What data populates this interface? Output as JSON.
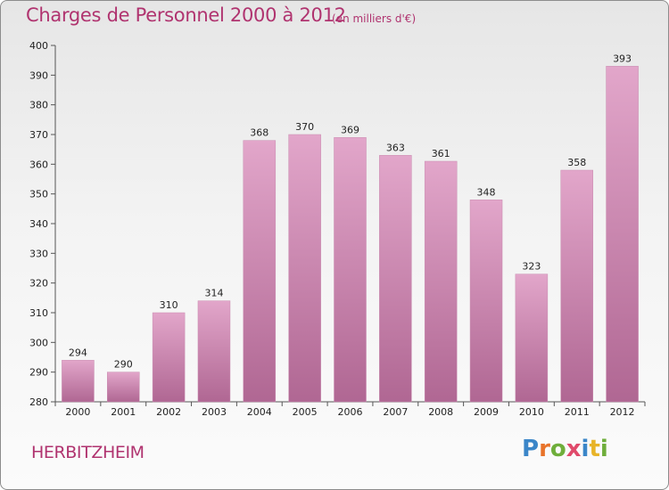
{
  "header": {
    "title": "Charges de Personnel 2000 à 2012",
    "unit_note": "(en milliers d'€)"
  },
  "footer": {
    "place": "HERBITZHEIM",
    "logo_text": "Proxiti"
  },
  "colors": {
    "accent": "#b0336f",
    "bar_top": "#e2a6ca",
    "bar_bottom": "#b06793",
    "logo_letters": [
      "#3b86c8",
      "#e8732a",
      "#6fae3b",
      "#e04a6b",
      "#3b86c8",
      "#e8b428",
      "#6fae3b"
    ]
  },
  "chart_data": {
    "type": "bar",
    "categories": [
      "2000",
      "2001",
      "2002",
      "2003",
      "2004",
      "2005",
      "2006",
      "2007",
      "2008",
      "2009",
      "2010",
      "2011",
      "2012"
    ],
    "values": [
      294,
      290,
      310,
      314,
      368,
      370,
      369,
      363,
      361,
      348,
      323,
      358,
      393
    ],
    "title": "Charges de Personnel 2000 à 2012",
    "subtitle": "(en milliers d'€)",
    "ylim": [
      280,
      400
    ],
    "yticks": [
      280,
      290,
      300,
      310,
      320,
      330,
      340,
      350,
      360,
      370,
      380,
      390,
      400
    ],
    "grid": false,
    "data_labels": true
  }
}
